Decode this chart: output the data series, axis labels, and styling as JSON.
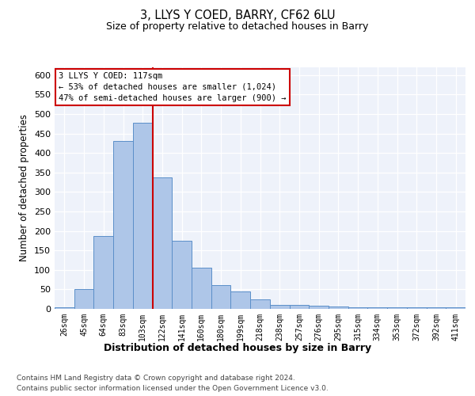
{
  "title": "3, LLYS Y COED, BARRY, CF62 6LU",
  "subtitle": "Size of property relative to detached houses in Barry",
  "xlabel": "Distribution of detached houses by size in Barry",
  "ylabel": "Number of detached properties",
  "categories": [
    "26sqm",
    "45sqm",
    "64sqm",
    "83sqm",
    "103sqm",
    "122sqm",
    "141sqm",
    "160sqm",
    "180sqm",
    "199sqm",
    "218sqm",
    "238sqm",
    "257sqm",
    "276sqm",
    "295sqm",
    "315sqm",
    "334sqm",
    "353sqm",
    "372sqm",
    "392sqm",
    "411sqm"
  ],
  "values": [
    5,
    50,
    187,
    430,
    477,
    338,
    174,
    106,
    61,
    44,
    24,
    11,
    11,
    8,
    7,
    5,
    4,
    4,
    5,
    4,
    4
  ],
  "bar_color": "#aec6e8",
  "bar_edge_color": "#5b8fc9",
  "property_bar_index": 4,
  "annotation_title": "3 LLYS Y COED: 117sqm",
  "annotation_line1": "← 53% of detached houses are smaller (1,024)",
  "annotation_line2": "47% of semi-detached houses are larger (900) →",
  "vline_color": "#cc0000",
  "footer1": "Contains HM Land Registry data © Crown copyright and database right 2024.",
  "footer2": "Contains public sector information licensed under the Open Government Licence v3.0.",
  "ylim": [
    0,
    620
  ],
  "yticks": [
    0,
    50,
    100,
    150,
    200,
    250,
    300,
    350,
    400,
    450,
    500,
    550,
    600
  ],
  "bg_color": "#eef2fa"
}
